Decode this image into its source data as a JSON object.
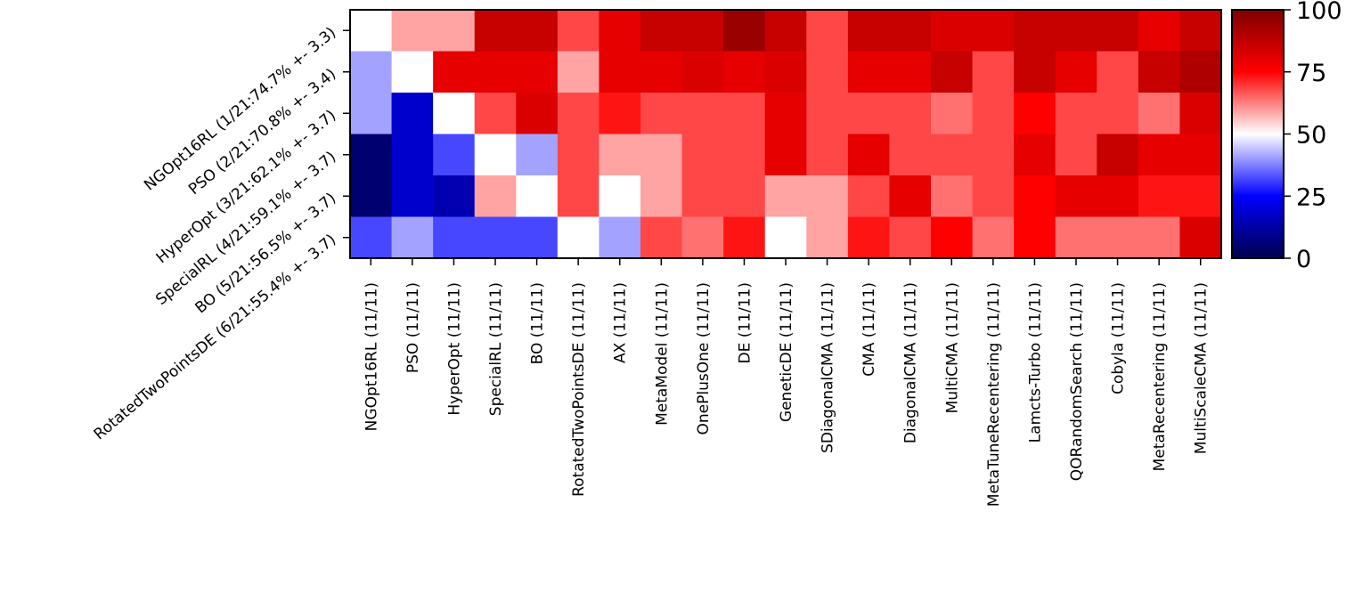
{
  "chart_data": {
    "type": "heatmap",
    "title": "",
    "xlabel": "",
    "ylabel": "",
    "row_labels": [
      "NGOpt16RL (1/21:74.7% +- 3.3)",
      "PSO (2/21:70.8% +- 3.4)",
      "HyperOpt (3/21:62.1% +- 3.7)",
      "SpecialRL (4/21:59.1% +- 3.7)",
      "BO (5/21:56.5% +- 3.7)",
      "RotatedTwoPointsDE (6/21:55.4% +- 3.7)"
    ],
    "column_labels": [
      "NGOpt16RL (11/11)",
      "PSO (11/11)",
      "HyperOpt (11/11)",
      "SpecialRL (11/11)",
      "BO (11/11)",
      "RotatedTwoPointsDE (11/11)",
      "AX (11/11)",
      "MetaModel (11/11)",
      "OnePlusOne (11/11)",
      "DE (11/11)",
      "GeneticDE (11/11)",
      "SDiagonalCMA (11/11)",
      "CMA (11/11)",
      "DiagonalCMA (11/11)",
      "MultiCMA (11/11)",
      "MetaTuneRecentering (11/11)",
      "Lamcts-Turbo (11/11)",
      "QORandomSearch (11/11)",
      "Cobyla (11/11)",
      "MetaRecentering (11/11)",
      "MultiScaleCMA (11/11)"
    ],
    "values": [
      [
        50,
        59,
        59,
        86,
        86,
        68,
        80,
        86,
        86,
        95,
        86,
        68,
        86,
        86,
        82,
        82,
        86,
        86,
        86,
        80,
        86
      ],
      [
        41,
        50,
        80,
        80,
        80,
        59,
        80,
        80,
        82,
        80,
        82,
        68,
        80,
        80,
        86,
        68,
        86,
        80,
        68,
        86,
        91
      ],
      [
        41,
        18,
        50,
        68,
        82,
        68,
        73,
        68,
        68,
        68,
        80,
        68,
        68,
        68,
        64,
        68,
        75,
        68,
        68,
        64,
        82
      ],
      [
        5,
        18,
        32,
        50,
        41,
        68,
        59,
        59,
        68,
        68,
        80,
        68,
        80,
        68,
        68,
        68,
        80,
        68,
        86,
        80,
        80
      ],
      [
        5,
        18,
        14,
        59,
        50,
        68,
        50,
        59,
        68,
        68,
        59,
        59,
        68,
        80,
        64,
        68,
        75,
        80,
        80,
        73,
        73
      ],
      [
        32,
        41,
        32,
        32,
        32,
        50,
        41,
        68,
        64,
        73,
        50,
        59,
        73,
        68,
        75,
        64,
        75,
        64,
        64,
        64,
        82
      ]
    ],
    "colorbar": {
      "range": [
        0,
        100
      ],
      "ticks": [
        0,
        25,
        50,
        75,
        100
      ],
      "colormap": "seismic"
    },
    "grid": false
  }
}
